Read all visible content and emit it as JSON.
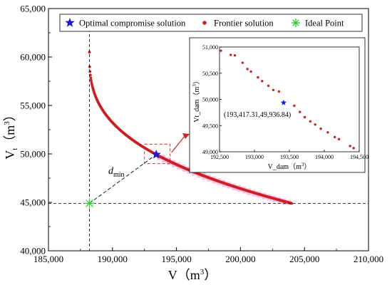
{
  "chart_data": {
    "type": "scatter",
    "main": {
      "xlabel": "V（m³）",
      "ylabel": "Vt（m³）",
      "ylabel_parts": {
        "base": "V",
        "sub": "t",
        "unit_open": "（m",
        "unit_exp": "3",
        "unit_close": "）"
      },
      "xlabel_parts": {
        "base": "V",
        "unit_open": "（m",
        "unit_exp": "3",
        "unit_close": "）"
      },
      "xlim": [
        185000,
        210000
      ],
      "ylim": [
        40000,
        65000
      ],
      "xticks": [
        185000,
        190000,
        195000,
        200000,
        205000,
        210000
      ],
      "xtick_labels": [
        "185,000",
        "190,000",
        "195,000",
        "200,000",
        "205,000",
        "210,000"
      ],
      "yticks": [
        40000,
        45000,
        50000,
        55000,
        60000,
        65000
      ],
      "ytick_labels": [
        "40,000",
        "45,000",
        "50,000",
        "55,000",
        "60,000",
        "65,000"
      ],
      "frontier": {
        "name": "Frontier solution",
        "color": "#cc1f1f",
        "highlight_color": "#f7a8dd",
        "x_start": 188200,
        "x_end": 204000,
        "y_start": 60500,
        "y_end": 44900,
        "count": 320
      },
      "optimal": {
        "name": "Optimal compromise solution",
        "x": 193417.31,
        "y": 49936.84,
        "color": "#1a1ad6"
      },
      "ideal": {
        "name": "Ideal Point",
        "x": 188200,
        "y": 44900,
        "color": "#33cc33"
      },
      "dmin_label": {
        "base": "d",
        "sub": "min"
      },
      "zoom_box": {
        "x": [
          192500,
          194500
        ],
        "y": [
          49000,
          51000
        ]
      }
    },
    "inset": {
      "xlabel": "V_dam（m³）",
      "ylabel": "Vt_dam（m³）",
      "xlabel_parts": {
        "base": "V_dam",
        "unit_open": "（m",
        "unit_exp": "3",
        "unit_close": "）"
      },
      "ylabel_parts": {
        "base": "Vt_dam",
        "unit_open": "（m",
        "unit_exp": "3",
        "unit_close": "）"
      },
      "xlim": [
        192500,
        194500
      ],
      "ylim": [
        49000,
        51000
      ],
      "xticks": [
        192500,
        193000,
        193500,
        194000,
        194500
      ],
      "xtick_labels": [
        "192,500",
        "193,000",
        "193,500",
        "194,000",
        "194,500"
      ],
      "yticks": [
        49000,
        49500,
        50000,
        50500,
        51000
      ],
      "ytick_labels": [
        "49,000",
        "49,500",
        "50,000",
        "50,500",
        "51,000"
      ],
      "points": [
        [
          192520,
          50930
        ],
        [
          192660,
          50850
        ],
        [
          192720,
          50840
        ],
        [
          192830,
          50700
        ],
        [
          192900,
          50580
        ],
        [
          192950,
          50530
        ],
        [
          193050,
          50420
        ],
        [
          193110,
          50350
        ],
        [
          193200,
          50260
        ],
        [
          193270,
          50180
        ],
        [
          193350,
          50150
        ],
        [
          193570,
          49880
        ],
        [
          193650,
          49760
        ],
        [
          193720,
          49660
        ],
        [
          193800,
          49580
        ],
        [
          193870,
          49520
        ],
        [
          193950,
          49440
        ],
        [
          194050,
          49370
        ],
        [
          194150,
          49280
        ],
        [
          194210,
          49240
        ],
        [
          194370,
          49110
        ],
        [
          194420,
          49070
        ]
      ],
      "optimal": {
        "x": 193417.31,
        "y": 49936.84
      },
      "optimal_label": "(193,417.31,49,936.84)"
    },
    "legend": {
      "position": "top",
      "entries": [
        {
          "label": "Optimal compromise solution",
          "marker": "star",
          "color": "#1a1ad6"
        },
        {
          "label": "Frontier solution",
          "marker": "dot",
          "color": "#cc1f1f"
        },
        {
          "label": "Ideal Point",
          "marker": "asterisk",
          "color": "#33cc33"
        }
      ]
    }
  }
}
